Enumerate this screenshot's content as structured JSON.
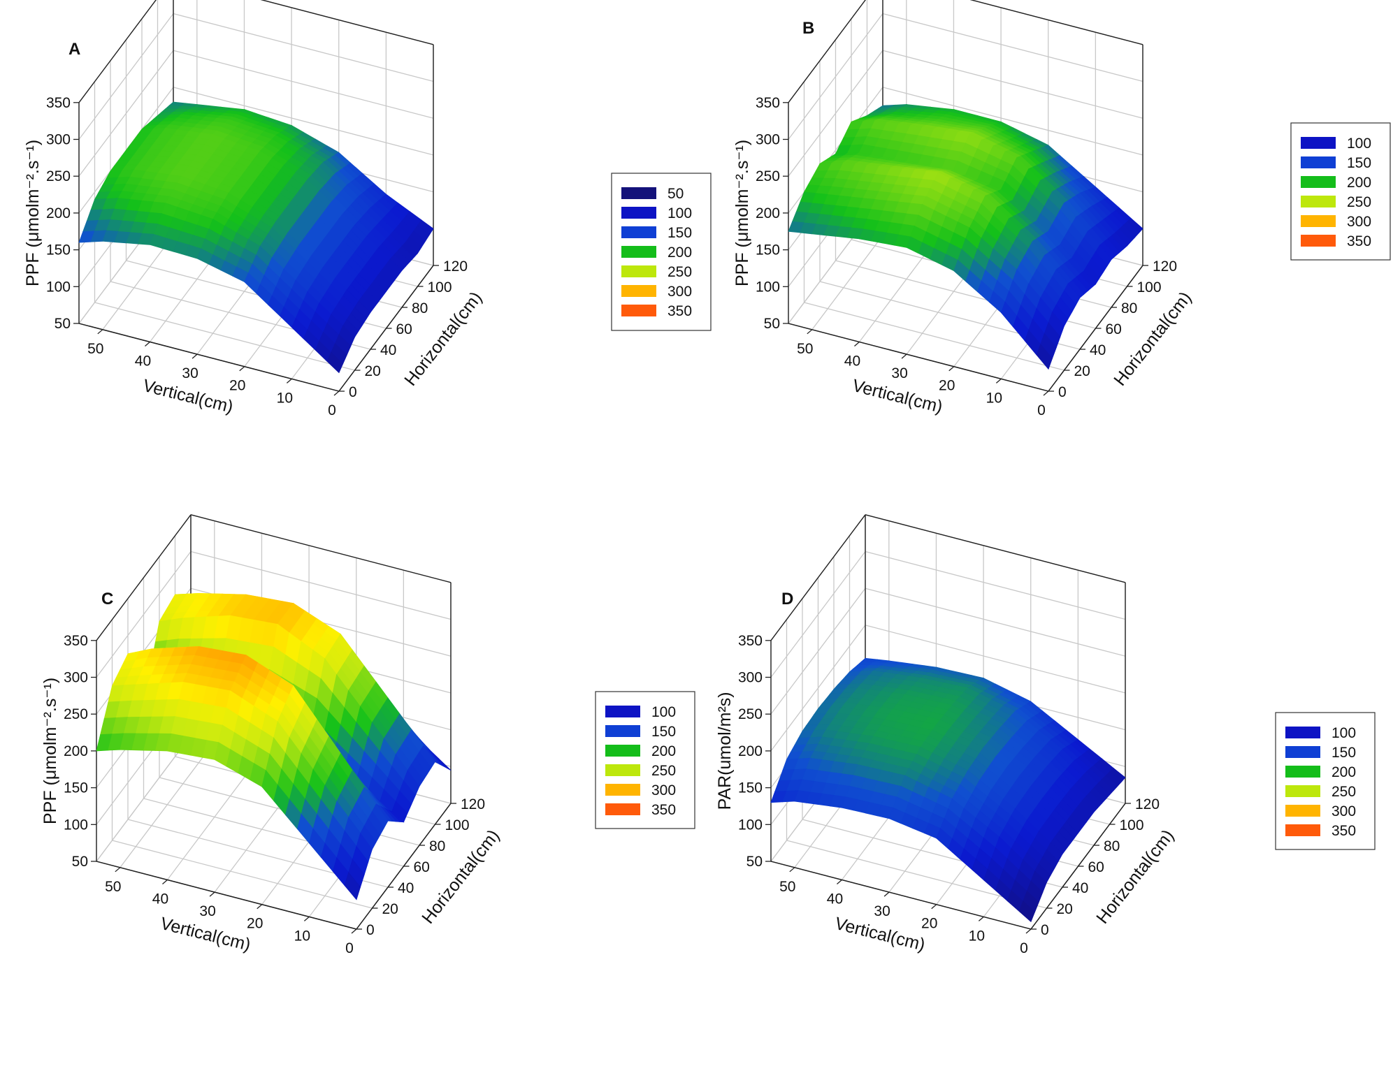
{
  "chart_data": [
    {
      "panel": "A",
      "type": "surface",
      "zlabel": "PPF (μmolm⁻².s⁻¹)",
      "xlabel": "Vertical(cm)",
      "ylabel": "Horizontal(cm)",
      "x_ticks": [
        0,
        10,
        20,
        30,
        40,
        50
      ],
      "y_ticks": [
        0,
        20,
        40,
        60,
        80,
        100,
        120
      ],
      "z_ticks": [
        50,
        100,
        150,
        200,
        250,
        300,
        350
      ],
      "xlim": [
        0,
        55
      ],
      "ylim": [
        0,
        120
      ],
      "zlim": [
        50,
        350
      ],
      "x": [
        0,
        10,
        20,
        30,
        40,
        50,
        55
      ],
      "y": [
        0,
        20,
        40,
        60,
        80,
        100,
        120
      ],
      "z": [
        [
          75,
          120,
          165,
          180,
          182,
          170,
          160
        ],
        [
          95,
          140,
          185,
          205,
          210,
          200,
          190
        ],
        [
          100,
          145,
          190,
          212,
          218,
          210,
          200
        ],
        [
          100,
          145,
          190,
          212,
          218,
          210,
          200
        ],
        [
          100,
          145,
          190,
          212,
          218,
          210,
          200
        ],
        [
          95,
          140,
          185,
          205,
          210,
          200,
          190
        ],
        [
          100,
          130,
          170,
          190,
          195,
          185,
          180
        ]
      ],
      "legend": [
        50,
        100,
        150,
        200,
        250,
        300,
        350
      ]
    },
    {
      "panel": "B",
      "type": "surface",
      "zlabel": "PPF (μmolm⁻².s⁻¹)",
      "xlabel": "Vertical(cm)",
      "ylabel": "Horizontal(cm)",
      "x_ticks": [
        0,
        10,
        20,
        30,
        40,
        50
      ],
      "y_ticks": [
        0,
        20,
        40,
        60,
        80,
        100,
        120
      ],
      "z_ticks": [
        50,
        100,
        150,
        200,
        250,
        300,
        350
      ],
      "xlim": [
        0,
        55
      ],
      "ylim": [
        0,
        120
      ],
      "zlim": [
        50,
        350
      ],
      "x": [
        0,
        10,
        20,
        30,
        40,
        50,
        55
      ],
      "y": [
        0,
        20,
        40,
        60,
        80,
        100,
        120
      ],
      "z": [
        [
          80,
          140,
          180,
          195,
          190,
          180,
          175
        ],
        [
          110,
          170,
          210,
          225,
          215,
          205,
          200
        ],
        [
          120,
          180,
          225,
          240,
          230,
          220,
          210
        ],
        [
          110,
          165,
          205,
          215,
          210,
          205,
          195
        ],
        [
          115,
          175,
          220,
          235,
          228,
          220,
          210
        ],
        [
          105,
          160,
          200,
          215,
          210,
          200,
          190
        ],
        [
          100,
          140,
          180,
          195,
          195,
          185,
          175
        ]
      ],
      "legend": [
        100,
        150,
        200,
        250,
        300,
        350
      ]
    },
    {
      "panel": "C",
      "type": "surface",
      "zlabel": "PPF (μmolm⁻².s⁻¹)",
      "xlabel": "Vertical(cm)",
      "ylabel": "Horizontal(cm)",
      "x_ticks": [
        0,
        10,
        20,
        30,
        40,
        50
      ],
      "y_ticks": [
        0,
        20,
        40,
        60,
        80,
        100,
        120
      ],
      "z_ticks": [
        50,
        100,
        150,
        200,
        250,
        300,
        350
      ],
      "xlim": [
        0,
        55
      ],
      "ylim": [
        0,
        120
      ],
      "zlim": [
        50,
        350
      ],
      "x": [
        0,
        10,
        20,
        30,
        40,
        50,
        55
      ],
      "y": [
        0,
        20,
        40,
        60,
        80,
        100,
        120
      ],
      "z": [
        [
          90,
          150,
          210,
          230,
          225,
          210,
          200
        ],
        [
          130,
          200,
          270,
          295,
          290,
          270,
          260
        ],
        [
          140,
          215,
          290,
          315,
          310,
          290,
          275
        ],
        [
          110,
          150,
          190,
          205,
          200,
          190,
          180
        ],
        [
          130,
          200,
          270,
          300,
          295,
          275,
          262
        ],
        [
          135,
          205,
          275,
          300,
          295,
          280,
          270
        ],
        [
          95,
          140,
          180,
          200,
          195,
          185,
          180
        ]
      ],
      "legend": [
        100,
        150,
        200,
        250,
        300,
        350
      ]
    },
    {
      "panel": "D",
      "type": "surface",
      "zlabel": "PAR(umol/m²s)",
      "xlabel": "Vertical(cm)",
      "ylabel": "Horizontal(cm)",
      "x_ticks": [
        0,
        10,
        20,
        30,
        40,
        50
      ],
      "y_ticks": [
        0,
        20,
        40,
        60,
        80,
        100,
        120
      ],
      "z_ticks": [
        50,
        100,
        150,
        200,
        250,
        300,
        350
      ],
      "xlim": [
        0,
        55
      ],
      "ylim": [
        0,
        120
      ],
      "zlim": [
        50,
        350
      ],
      "x": [
        0,
        10,
        20,
        30,
        40,
        50,
        55
      ],
      "y": [
        0,
        20,
        40,
        60,
        80,
        100,
        120
      ],
      "z": [
        [
          60,
          100,
          140,
          150,
          148,
          140,
          130
        ],
        [
          85,
          130,
          165,
          180,
          178,
          170,
          160
        ],
        [
          95,
          140,
          175,
          190,
          188,
          180,
          170
        ],
        [
          95,
          142,
          178,
          192,
          190,
          182,
          172
        ],
        [
          95,
          140,
          175,
          190,
          188,
          180,
          170
        ],
        [
          90,
          135,
          170,
          185,
          182,
          175,
          165
        ],
        [
          85,
          120,
          155,
          170,
          168,
          160,
          155
        ]
      ],
      "legend": [
        100,
        150,
        200,
        250,
        300,
        350
      ]
    }
  ],
  "colors": {
    "50": "#14127a",
    "100": "#0d13c4",
    "150": "#0f3fd4",
    "200": "#14bd1a",
    "250": "#bde70c",
    "300": "#ffb400",
    "350": "#ff5a0a"
  }
}
